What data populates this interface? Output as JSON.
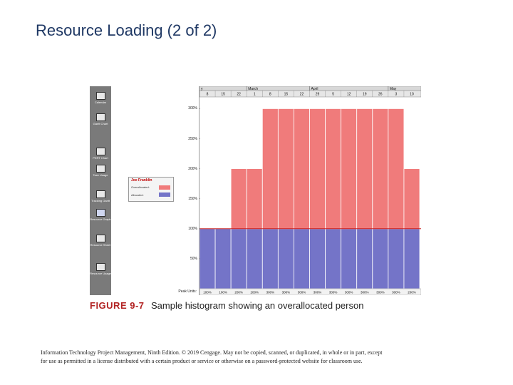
{
  "slide": {
    "title": "Resource Loading (2 of 2)"
  },
  "view_bar": [
    {
      "label": "Calendar",
      "icon": "calendar-icon"
    },
    {
      "label": "Gantt Chart",
      "icon": "gantt-chart-icon"
    },
    {
      "label": "PERT Chart",
      "icon": "pert-chart-icon"
    },
    {
      "label": "Task Usage",
      "icon": "task-usage-icon"
    },
    {
      "label": "Tracking Gantt",
      "icon": "tracking-gantt-icon"
    },
    {
      "label": "Resource Graph",
      "icon": "resource-graph-icon",
      "active": true
    },
    {
      "label": "Resource Sheet",
      "icon": "resource-sheet-icon"
    },
    {
      "label": "Resource Usage",
      "icon": "resource-usage-icon"
    }
  ],
  "legend": {
    "name": "Joe Franklin",
    "items": [
      {
        "label": "Overallocated:",
        "color": "#f07b7b"
      },
      {
        "label": "Allocated:",
        "color": "#7474c8"
      }
    ]
  },
  "chart_data": {
    "type": "bar",
    "months": [
      {
        "label": "y",
        "start": 0
      },
      {
        "label": "March",
        "start": 3
      },
      {
        "label": "April",
        "start": 7
      },
      {
        "label": "May",
        "start": 12
      }
    ],
    "categories": [
      "8",
      "15",
      "22",
      "1",
      "8",
      "15",
      "22",
      "29",
      "5",
      "12",
      "19",
      "26",
      "3",
      "10"
    ],
    "series": [
      {
        "name": "Allocated",
        "color": "#7474c8",
        "values": [
          100,
          100,
          100,
          100,
          100,
          100,
          100,
          100,
          100,
          100,
          100,
          100,
          100,
          100
        ]
      },
      {
        "name": "Overallocated",
        "color": "#f07b7b",
        "values": [
          0,
          0,
          100,
          100,
          200,
          200,
          200,
          200,
          200,
          200,
          200,
          200,
          200,
          100
        ]
      }
    ],
    "yticks": [
      "300%",
      "250%",
      "200%",
      "150%",
      "100%",
      "50%"
    ],
    "ytick_values": [
      300,
      250,
      200,
      150,
      100,
      50
    ],
    "ylim": [
      0,
      320
    ],
    "peak_units_label": "Peak Units:",
    "peak_units": [
      "100%",
      "100%",
      "200%",
      "200%",
      "300%",
      "300%",
      "300%",
      "300%",
      "300%",
      "300%",
      "300%",
      "300%",
      "300%",
      "200%"
    ],
    "threshold_color": "#c00000"
  },
  "caption": {
    "figure": "FIGURE 9-7",
    "text": "Sample histogram showing an overallocated person"
  },
  "footer": {
    "line1": "Information Technology Project Management, Ninth Edition. © 2019 Cengage. May not be copied, scanned, or duplicated, in whole or in part, except",
    "line2": "for use as permitted in a license distributed with a certain product or service or otherwise on a password-protected website for classroom use."
  }
}
